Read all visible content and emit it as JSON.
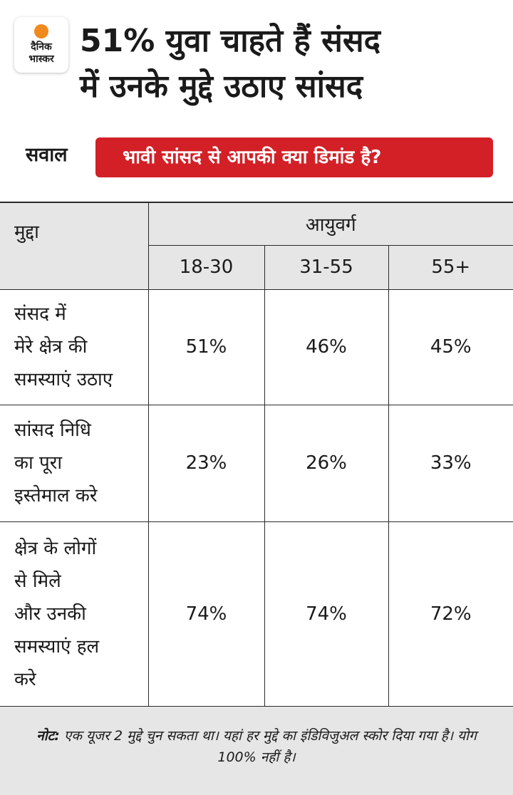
{
  "header": {
    "logo_line1": "दैनिक",
    "logo_line2": "भास्कर",
    "headline_line1": "51% युवा चाहते हैं संसद",
    "headline_line2": "में उनके मुद्दे उठाए सांसद"
  },
  "question": {
    "label": "सवाल",
    "text": "भावी सांसद से आपकी क्या डिमांड है?"
  },
  "table": {
    "issue_header": "मुद्दा",
    "group_header": "आयुवर्ग",
    "age_groups": [
      "18-30",
      "31-55",
      "55+"
    ],
    "rows": [
      {
        "issue_lines": [
          "संसद में",
          "मेरे क्षेत्र की",
          "समस्याएं उठाए"
        ],
        "values": [
          "51%",
          "46%",
          "45%"
        ]
      },
      {
        "issue_lines": [
          "सांसद निधि",
          "का पूरा",
          "इस्तेमाल करे"
        ],
        "values": [
          "23%",
          "26%",
          "33%"
        ]
      },
      {
        "issue_lines": [
          "क्षेत्र के लोगों",
          "से मिले",
          "और उनकी",
          "समस्याएं हल",
          "करे"
        ],
        "values": [
          "74%",
          "74%",
          "72%"
        ]
      }
    ]
  },
  "note": {
    "label": "नोट:",
    "text": " एक यूजर 2 मुद्दे चुन सकता था। यहां हर मुद्दे का इंडिविजुअल स्कोर दिया गया है। योग 100% नहीं है।"
  },
  "colors": {
    "accent_red": "#d32027",
    "header_gray": "#e6e6e6",
    "logo_sun": "#f08a1c"
  }
}
